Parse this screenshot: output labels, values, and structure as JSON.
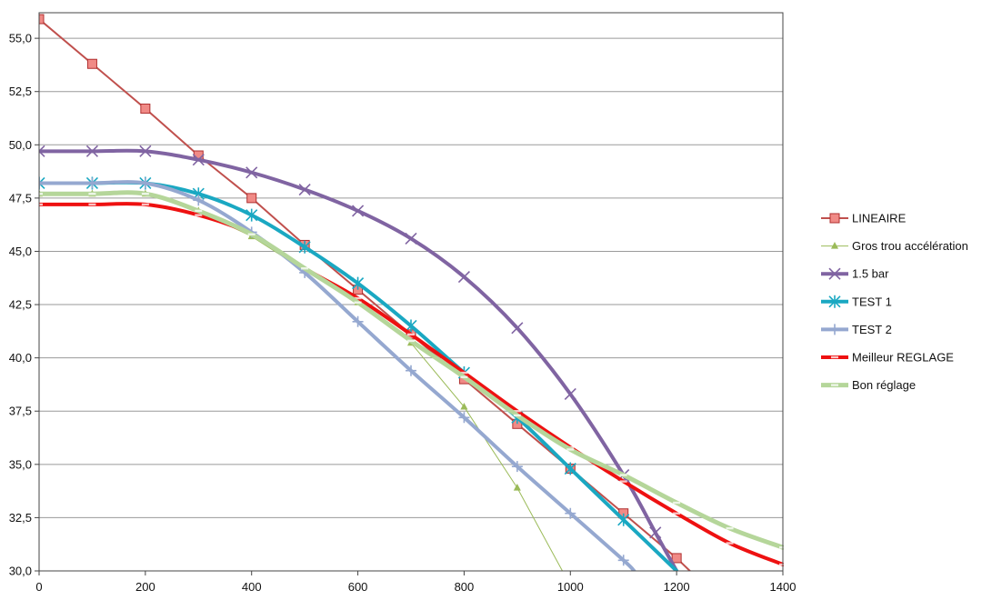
{
  "chart_data": {
    "type": "line",
    "title": "",
    "xlabel": "",
    "ylabel": "",
    "xlim": [
      0,
      1400
    ],
    "ylim": [
      30,
      56.2
    ],
    "x_ticks": [
      0,
      200,
      400,
      600,
      800,
      1000,
      1200,
      1400
    ],
    "x_tick_labels": [
      "0",
      "200",
      "400",
      "600",
      "800",
      "1000",
      "1200",
      "1400"
    ],
    "y_ticks": [
      30,
      32.5,
      35,
      37.5,
      40,
      42.5,
      45,
      47.5,
      50,
      52.5,
      55
    ],
    "y_tick_labels": [
      "30,0",
      "32,5",
      "35,0",
      "37,5",
      "40,0",
      "42,5",
      "45,0",
      "47,5",
      "50,0",
      "52,5",
      "55,0"
    ],
    "grid": "horizontal",
    "legend_position": "right",
    "series": [
      {
        "name": "LINEAIRE",
        "color": "#c0504d",
        "marker": "square",
        "smooth": false,
        "width": 2,
        "points": [
          [
            0,
            55.9
          ],
          [
            100,
            53.8
          ],
          [
            200,
            51.7
          ],
          [
            300,
            49.5
          ],
          [
            400,
            47.5
          ],
          [
            500,
            45.3
          ],
          [
            600,
            43.2
          ],
          [
            700,
            41.1
          ],
          [
            800,
            39.0
          ],
          [
            900,
            36.9
          ],
          [
            1000,
            34.8
          ],
          [
            1100,
            32.7
          ],
          [
            1200,
            30.6
          ],
          [
            1225,
            30.0
          ]
        ]
      },
      {
        "name": "Gros trou accélération",
        "color": "#9bbb59",
        "marker": "triangle",
        "smooth": false,
        "width": 1,
        "points": [
          [
            0,
            47.7
          ],
          [
            100,
            47.7
          ],
          [
            200,
            47.7
          ],
          [
            300,
            46.9
          ],
          [
            400,
            45.7
          ],
          [
            500,
            44.1
          ],
          [
            600,
            42.6
          ],
          [
            700,
            40.7
          ],
          [
            800,
            37.7
          ],
          [
            900,
            33.9
          ],
          [
            985,
            30.0
          ]
        ]
      },
      {
        "name": "1.5 bar",
        "color": "#8064a2",
        "marker": "x",
        "smooth": true,
        "width": 4,
        "points": [
          [
            0,
            49.7
          ],
          [
            100,
            49.7
          ],
          [
            200,
            49.7
          ],
          [
            300,
            49.3
          ],
          [
            400,
            48.7
          ],
          [
            500,
            47.9
          ],
          [
            600,
            46.9
          ],
          [
            700,
            45.6
          ],
          [
            800,
            43.8
          ],
          [
            900,
            41.4
          ],
          [
            1000,
            38.3
          ],
          [
            1100,
            34.5
          ],
          [
            1160,
            31.8
          ],
          [
            1200,
            30.0
          ]
        ]
      },
      {
        "name": "TEST 1",
        "color": "#1aa8c2",
        "marker": "asterisk",
        "smooth": true,
        "width": 4,
        "points": [
          [
            0,
            48.2
          ],
          [
            100,
            48.2
          ],
          [
            200,
            48.2
          ],
          [
            300,
            47.7
          ],
          [
            400,
            46.7
          ],
          [
            500,
            45.2
          ],
          [
            600,
            43.5
          ],
          [
            700,
            41.5
          ],
          [
            800,
            39.3
          ],
          [
            900,
            37.2
          ],
          [
            1000,
            34.8
          ],
          [
            1100,
            32.4
          ],
          [
            1200,
            30.0
          ]
        ]
      },
      {
        "name": "TEST 2",
        "color": "#95a8d0",
        "marker": "plus",
        "smooth": true,
        "width": 4,
        "points": [
          [
            0,
            48.2
          ],
          [
            100,
            48.2
          ],
          [
            200,
            48.2
          ],
          [
            300,
            47.4
          ],
          [
            400,
            45.9
          ],
          [
            500,
            44.0
          ],
          [
            600,
            41.7
          ],
          [
            700,
            39.4
          ],
          [
            800,
            37.2
          ],
          [
            900,
            34.9
          ],
          [
            1000,
            32.7
          ],
          [
            1100,
            30.5
          ],
          [
            1120,
            30.0
          ]
        ]
      },
      {
        "name": "Meilleur REGLAGE",
        "color": "#ee1111",
        "marker": "dash",
        "smooth": true,
        "width": 4,
        "points": [
          [
            0,
            47.2
          ],
          [
            100,
            47.2
          ],
          [
            200,
            47.2
          ],
          [
            300,
            46.7
          ],
          [
            400,
            45.8
          ],
          [
            500,
            44.2
          ],
          [
            600,
            42.8
          ],
          [
            700,
            41.1
          ],
          [
            800,
            39.3
          ],
          [
            900,
            37.5
          ],
          [
            1000,
            35.8
          ],
          [
            1100,
            34.2
          ],
          [
            1200,
            32.7
          ],
          [
            1300,
            31.3
          ],
          [
            1400,
            30.3
          ]
        ]
      },
      {
        "name": "Bon réglage",
        "color": "#b5d69a",
        "marker": "dash",
        "smooth": true,
        "width": 5,
        "points": [
          [
            0,
            47.7
          ],
          [
            100,
            47.7
          ],
          [
            200,
            47.7
          ],
          [
            300,
            46.9
          ],
          [
            400,
            45.8
          ],
          [
            500,
            44.2
          ],
          [
            600,
            42.6
          ],
          [
            700,
            40.8
          ],
          [
            800,
            39.1
          ],
          [
            900,
            37.3
          ],
          [
            1000,
            35.7
          ],
          [
            1100,
            34.5
          ],
          [
            1200,
            33.2
          ],
          [
            1300,
            32.0
          ],
          [
            1400,
            31.1
          ]
        ]
      }
    ]
  }
}
